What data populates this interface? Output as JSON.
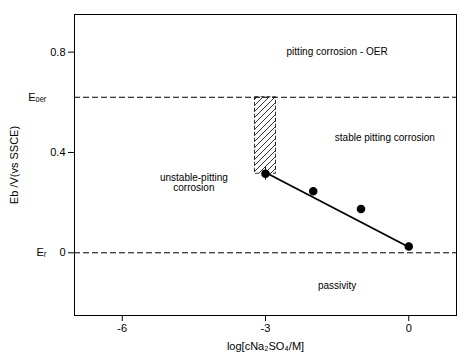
{
  "chart_data": {
    "type": "scatter",
    "x_label": "log[cNa₂SO₄/M]",
    "y_label": "Eb /V(vs SSCE)",
    "xlim": [
      -7,
      1
    ],
    "ylim": [
      -0.25,
      0.95
    ],
    "xticks": [
      -6,
      -3,
      0
    ],
    "yticks": [
      0,
      0.4,
      0.8
    ],
    "grid": false,
    "color": "#000000",
    "marker": "o",
    "x": [
      -3.0,
      -2.0,
      -1.0,
      0.0
    ],
    "values": [
      0.315,
      0.245,
      0.175,
      0.025
    ],
    "errors": [
      0.025,
      0.0,
      0.0,
      0.015
    ],
    "trend_line": {
      "x": [
        -3.05,
        0.05
      ],
      "y": [
        0.325,
        0.018
      ]
    },
    "reference_lines": [
      {
        "y": 0.62,
        "label": "Eₒₑᵣ"
      },
      {
        "y": 0.0,
        "label": "Eᵣ"
      }
    ],
    "hatched_region": {
      "x": [
        -3.22,
        -2.78
      ],
      "y": [
        0.315,
        0.62
      ]
    },
    "annotations": [
      {
        "text": "pitting corrosion - OER",
        "x": -1.5,
        "y": 0.8
      },
      {
        "text": "stable pitting corrosion",
        "x": -0.5,
        "y": 0.46
      },
      {
        "text": "unstable-pitting\ncorrosion",
        "x": -4.5,
        "y": 0.28
      },
      {
        "text": "passivity",
        "x": -1.5,
        "y": -0.13
      }
    ]
  }
}
